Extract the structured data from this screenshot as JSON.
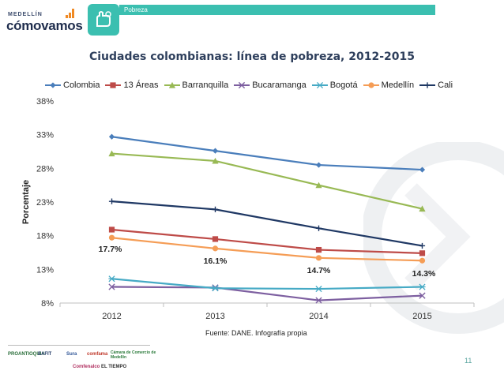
{
  "brand": {
    "small": "MEDELLÍN",
    "big": "cómovamos",
    "section_tag": "Pobreza"
  },
  "chart_data": {
    "type": "line",
    "title": "Ciudades colombianas: línea de pobreza, 2012-2015",
    "ylabel": "Porcentaje",
    "xlabel": "",
    "categories": [
      "2012",
      "2013",
      "2014",
      "2015"
    ],
    "ylim": [
      8,
      38
    ],
    "yticks": [
      8,
      13,
      18,
      23,
      28,
      33,
      38
    ],
    "ytick_labels": [
      "8%",
      "13%",
      "18%",
      "23%",
      "28%",
      "33%",
      "38%"
    ],
    "legend_position": "top",
    "series": [
      {
        "name": "Colombia",
        "values": [
          32.7,
          30.6,
          28.5,
          27.8
        ],
        "color": "#4a7ebb",
        "marker": "diamond"
      },
      {
        "name": "13 Áreas",
        "values": [
          18.9,
          17.5,
          15.9,
          15.4
        ],
        "color": "#be4b48",
        "marker": "square"
      },
      {
        "name": "Barranquilla",
        "values": [
          30.2,
          29.1,
          25.5,
          22.0
        ],
        "color": "#98b954",
        "marker": "triangle"
      },
      {
        "name": "Bucaramanga",
        "values": [
          10.4,
          10.3,
          8.4,
          9.1
        ],
        "color": "#7d5fa0",
        "marker": "x"
      },
      {
        "name": "Bogotá",
        "values": [
          11.6,
          10.2,
          10.1,
          10.4
        ],
        "color": "#46aac5",
        "marker": "star"
      },
      {
        "name": "Medellín",
        "values": [
          17.7,
          16.1,
          14.7,
          14.3
        ],
        "color": "#f59d56",
        "marker": "circle"
      },
      {
        "name": "Cali",
        "values": [
          23.1,
          21.9,
          19.1,
          16.5
        ],
        "color": "#1f3864",
        "marker": "plus"
      }
    ],
    "data_labels": [
      {
        "series": "Medellín",
        "index": 0,
        "text": "17.7%"
      },
      {
        "series": "Medellín",
        "index": 1,
        "text": "16.1%"
      },
      {
        "series": "Medellín",
        "index": 2,
        "text": "14.7%"
      },
      {
        "series": "Medellín",
        "index": 3,
        "text": "14.3%"
      }
    ],
    "grid": false
  },
  "source": "Fuente: DANE. Infografía propia",
  "page_number": "11",
  "sponsors": [
    "PROANTIOQUIA",
    "EAFIT",
    "Sura",
    "comfama",
    "Cámara de Comercio de Medellín",
    "Comfenalco",
    "EL TIEMPO"
  ]
}
